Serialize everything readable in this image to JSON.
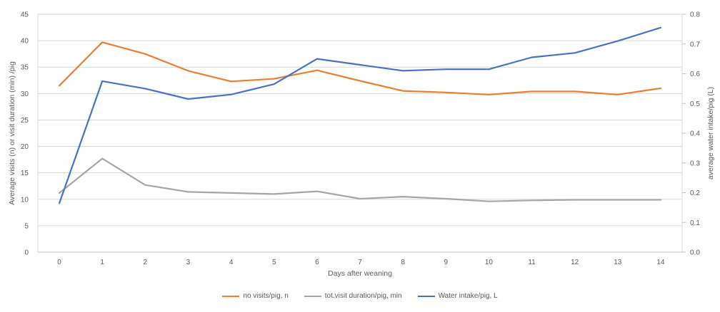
{
  "chart_data": {
    "type": "line",
    "title": "",
    "x": {
      "label": "Days after weaning",
      "ticks": [
        "0",
        "1",
        "2",
        "3",
        "4",
        "5",
        "6",
        "7",
        "8",
        "9",
        "10",
        "11",
        "12",
        "13",
        "14"
      ]
    },
    "y_left": {
      "label": "Average visits (n) or visit duration (min) /pig",
      "min": 0,
      "max": 45,
      "step": 5,
      "ticks": [
        "0",
        "5",
        "10",
        "15",
        "20",
        "25",
        "30",
        "35",
        "40",
        "45"
      ]
    },
    "y_right": {
      "label": "average water intake/pig (L)",
      "min": 0,
      "max": 0.8,
      "step": 0.1,
      "ticks": [
        "0.0",
        "0.1",
        "0.2",
        "0.3",
        "0.4",
        "0.5",
        "0.6",
        "0.7",
        "0.8"
      ]
    },
    "grid": true,
    "legend_position": "bottom",
    "series": [
      {
        "name": "no visits/pig, n",
        "axis": "left",
        "color": "#ED7D31",
        "values": [
          31.5,
          39.7,
          37.5,
          34.3,
          32.3,
          32.8,
          34.4,
          32.4,
          30.5,
          30.2,
          29.8,
          30.4,
          30.4,
          29.8,
          31.0
        ]
      },
      {
        "name": "tot.visit duration/pig, min",
        "axis": "left",
        "color": "#A5A5A5",
        "values": [
          11.2,
          17.7,
          12.7,
          11.4,
          11.2,
          11.0,
          11.5,
          10.1,
          10.5,
          10.1,
          9.6,
          9.8,
          9.9,
          9.9,
          9.9
        ]
      },
      {
        "name": "Water intake/pig, L",
        "axis": "right",
        "color": "#4472C4",
        "values": [
          0.165,
          0.575,
          0.55,
          0.515,
          0.53,
          0.565,
          0.65,
          0.63,
          0.61,
          0.615,
          0.615,
          0.655,
          0.67,
          0.71,
          0.755
        ]
      }
    ],
    "colors": {
      "gridline": "#D9D9D9",
      "axis_line": "#BFBFBF",
      "tick_text": "#595959",
      "background": "#FFFFFF"
    }
  }
}
